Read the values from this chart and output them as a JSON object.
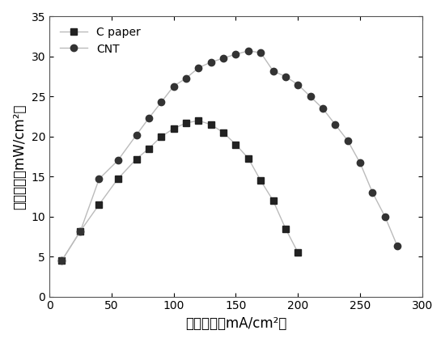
{
  "c_paper_x": [
    10,
    25,
    40,
    55,
    70,
    80,
    90,
    100,
    110,
    120,
    130,
    140,
    150,
    160,
    170,
    180,
    190,
    200
  ],
  "c_paper_y": [
    4.5,
    8.2,
    11.5,
    14.7,
    17.2,
    18.5,
    20.0,
    21.0,
    21.7,
    22.0,
    21.5,
    20.5,
    19.0,
    17.3,
    14.5,
    12.0,
    8.5,
    5.5
  ],
  "cnt_x": [
    10,
    25,
    40,
    55,
    70,
    80,
    90,
    100,
    110,
    120,
    130,
    140,
    150,
    160,
    170,
    180,
    190,
    200,
    210,
    220,
    230,
    240,
    250,
    260,
    270,
    280
  ],
  "cnt_y": [
    4.5,
    8.2,
    14.7,
    17.0,
    20.2,
    22.3,
    24.3,
    26.3,
    27.3,
    28.6,
    29.3,
    29.8,
    30.3,
    30.7,
    30.5,
    28.2,
    27.5,
    26.5,
    25.0,
    23.5,
    21.5,
    19.5,
    16.7,
    13.0,
    10.0,
    6.3
  ],
  "xlabel": "电流密度（mA/cm²）",
  "ylabel": "功率密度（mW/cm²）",
  "xlim": [
    0,
    300
  ],
  "ylim": [
    0,
    35
  ],
  "xticks": [
    0,
    50,
    100,
    150,
    200,
    250,
    300
  ],
  "yticks": [
    0,
    5,
    10,
    15,
    20,
    25,
    30,
    35
  ],
  "legend_labels": [
    "C paper",
    "CNT"
  ],
  "line_color": "#bbbbbb",
  "marker_color_c_paper": "#222222",
  "marker_color_cnt": "#333333",
  "background_color": "#ffffff"
}
